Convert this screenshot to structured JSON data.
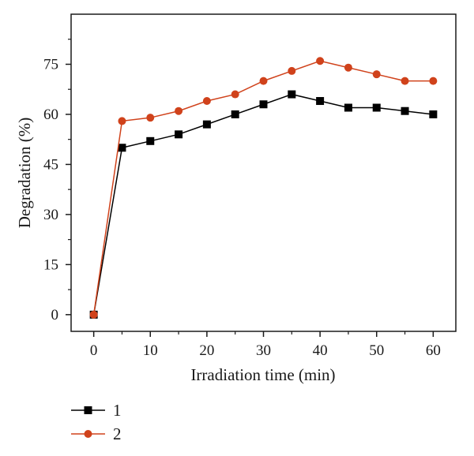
{
  "chart_data": {
    "type": "line",
    "xlabel": "Irradiation time (min)",
    "ylabel": "Degradation (%)",
    "xlim": [
      -4,
      64
    ],
    "ylim": [
      -5,
      90
    ],
    "xticks": [
      0,
      10,
      20,
      30,
      40,
      50,
      60
    ],
    "yticks": [
      0,
      15,
      30,
      45,
      60,
      75
    ],
    "grid": false,
    "legend_position": "bottom-left",
    "x": [
      0,
      5,
      10,
      15,
      20,
      25,
      30,
      35,
      40,
      45,
      50,
      55,
      60
    ],
    "series": [
      {
        "name": "1",
        "color": "#000000",
        "marker": "square",
        "values": [
          0,
          50,
          52,
          54,
          57,
          60,
          63,
          66,
          64,
          62,
          62,
          61,
          60
        ]
      },
      {
        "name": "2",
        "color": "#d0421b",
        "marker": "circle",
        "values": [
          0,
          58,
          59,
          61,
          64,
          66,
          70,
          73,
          76,
          74,
          72,
          70,
          70
        ]
      }
    ]
  }
}
